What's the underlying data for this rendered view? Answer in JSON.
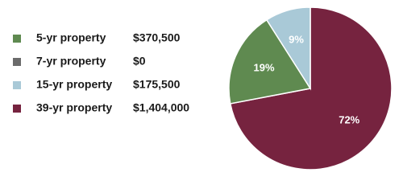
{
  "chart_data": {
    "type": "pie",
    "categories": [
      "5-yr property",
      "7-yr property",
      "15-yr property",
      "39-yr property"
    ],
    "values": [
      370500,
      0,
      175500,
      1404000
    ],
    "value_labels": [
      "$370,500",
      "$0",
      "$175,500",
      "$1,404,000"
    ],
    "percent_labels": [
      "19%",
      null,
      "9%",
      "72%"
    ],
    "colors": [
      "#5f8a50",
      "#6b6b6b",
      "#a9c9d7",
      "#76233f"
    ]
  }
}
